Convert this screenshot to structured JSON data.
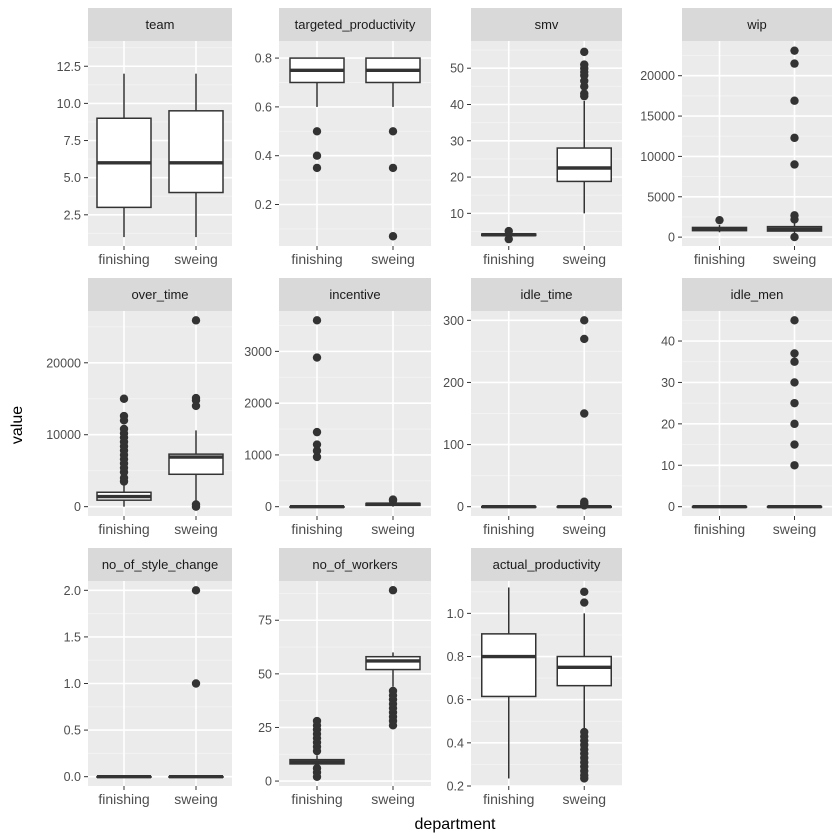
{
  "chart_data": {
    "type": "boxplot",
    "layout": "facet-wrap",
    "xlabel": "department",
    "ylabel": "value",
    "categories": [
      "finishing",
      "sweing"
    ],
    "colors": {
      "panel_bg": "#ebebeb",
      "strip_bg": "#d9d9d9",
      "grid_major": "#ffffff",
      "grid_minor": "#f3f3f3",
      "box_fill": "#ffffff",
      "box_line": "#333333",
      "axis_text": "#4d4d4d",
      "title_text": "#000000"
    },
    "facets": [
      {
        "name": "team",
        "ylim": [
          0.4,
          14.2
        ],
        "ticks": [
          2.5,
          5.0,
          7.5,
          10.0,
          12.5
        ],
        "tick_labels": [
          "2.5",
          "5.0",
          "7.5",
          "10.0",
          "12.5"
        ],
        "boxes": [
          {
            "category": "finishing",
            "min": 1,
            "q1": 3,
            "median": 6,
            "q3": 9,
            "max": 12,
            "outliers": []
          },
          {
            "category": "sweing",
            "min": 1,
            "q1": 4,
            "median": 6,
            "q3": 9.5,
            "max": 12,
            "outliers": []
          }
        ]
      },
      {
        "name": "targeted_productivity",
        "ylim": [
          0.03,
          0.87
        ],
        "ticks": [
          0.2,
          0.4,
          0.6,
          0.8
        ],
        "tick_labels": [
          "0.2",
          "0.4",
          "0.6",
          "0.8"
        ],
        "boxes": [
          {
            "category": "finishing",
            "min": 0.6,
            "q1": 0.7,
            "median": 0.75,
            "q3": 0.8,
            "max": 0.8,
            "outliers": [
              0.5,
              0.4,
              0.35
            ]
          },
          {
            "category": "sweing",
            "min": 0.6,
            "q1": 0.7,
            "median": 0.75,
            "q3": 0.8,
            "max": 0.8,
            "outliers": [
              0.5,
              0.35,
              0.07
            ]
          }
        ]
      },
      {
        "name": "smv",
        "ylim": [
          1,
          57.5
        ],
        "ticks": [
          10,
          20,
          30,
          40,
          50
        ],
        "tick_labels": [
          "10",
          "20",
          "30",
          "40",
          "50"
        ],
        "boxes": [
          {
            "category": "finishing",
            "min": 3.5,
            "q1": 3.9,
            "median": 4.1,
            "q3": 4.3,
            "max": 4.6,
            "outliers": [
              2.9,
              5.1
            ]
          },
          {
            "category": "sweing",
            "min": 10,
            "q1": 18.8,
            "median": 22.5,
            "q3": 28,
            "max": 41,
            "outliers": [
              42.3,
              43,
              45,
              46.5,
              48,
              49,
              50,
              51,
              54.5
            ]
          }
        ]
      },
      {
        "name": "wip",
        "ylim": [
          -1100,
          24300
        ],
        "ticks": [
          0,
          5000,
          10000,
          15000,
          20000
        ],
        "tick_labels": [
          "0",
          "5000",
          "10000",
          "15000",
          "20000"
        ],
        "boxes": [
          {
            "category": "finishing",
            "min": 600,
            "q1": 800,
            "median": 1000,
            "q3": 1200,
            "max": 1500,
            "outliers": [
              2100
            ]
          },
          {
            "category": "sweing",
            "min": 50,
            "q1": 750,
            "median": 1000,
            "q3": 1300,
            "max": 2000,
            "outliers": [
              7,
              2200,
              2700,
              9000,
              12300,
              16900,
              21500,
              23100
            ]
          }
        ]
      },
      {
        "name": "over_time",
        "ylim": [
          -1300,
          27200
        ],
        "ticks": [
          0,
          10000,
          20000
        ],
        "tick_labels": [
          "0",
          "10000",
          "20000"
        ],
        "boxes": [
          {
            "category": "finishing",
            "min": 0,
            "q1": 900,
            "median": 1400,
            "q3": 2000,
            "max": 3000,
            "outliers": [
              3500,
              4000,
              4800,
              5400,
              6000,
              6600,
              7200,
              7800,
              8400,
              9000,
              9600,
              10200,
              10800,
              12000,
              12600,
              15000
            ]
          },
          {
            "category": "sweing",
            "min": 0,
            "q1": 4500,
            "median": 6900,
            "q3": 7300,
            "max": 10600,
            "outliers": [
              0,
              300,
              14000,
              14800,
              15100,
              25900
            ]
          }
        ]
      },
      {
        "name": "incentive",
        "ylim": [
          -180,
          3780
        ],
        "ticks": [
          0,
          1000,
          2000,
          3000
        ],
        "tick_labels": [
          "0",
          "1000",
          "2000",
          "3000"
        ],
        "boxes": [
          {
            "category": "finishing",
            "min": 0,
            "q1": 0,
            "median": 0,
            "q3": 0,
            "max": 0,
            "outliers": [
              960,
              1080,
              1200,
              1440,
              2880,
              3600
            ]
          },
          {
            "category": "sweing",
            "min": 0,
            "q1": 25,
            "median": 50,
            "q3": 63,
            "max": 110,
            "outliers": [
              119,
              138
            ]
          }
        ]
      },
      {
        "name": "idle_time",
        "ylim": [
          -15,
          315
        ],
        "ticks": [
          0,
          100,
          200,
          300
        ],
        "tick_labels": [
          "0",
          "100",
          "200",
          "300"
        ],
        "boxes": [
          {
            "category": "finishing",
            "min": 0,
            "q1": 0,
            "median": 0,
            "q3": 0,
            "max": 0,
            "outliers": []
          },
          {
            "category": "sweing",
            "min": 0,
            "q1": 0,
            "median": 0,
            "q3": 0,
            "max": 0,
            "outliers": [
              2,
              5,
              8,
              150,
              270,
              300
            ]
          }
        ]
      },
      {
        "name": "idle_men",
        "ylim": [
          -2.25,
          47.25
        ],
        "ticks": [
          0,
          10,
          20,
          30,
          40
        ],
        "tick_labels": [
          "0",
          "10",
          "20",
          "30",
          "40"
        ],
        "boxes": [
          {
            "category": "finishing",
            "min": 0,
            "q1": 0,
            "median": 0,
            "q3": 0,
            "max": 0,
            "outliers": []
          },
          {
            "category": "sweing",
            "min": 0,
            "q1": 0,
            "median": 0,
            "q3": 0,
            "max": 0,
            "outliers": [
              10,
              15,
              20,
              25,
              30,
              35,
              37,
              45
            ]
          }
        ]
      },
      {
        "name": "no_of_style_change",
        "ylim": [
          -0.1,
          2.1
        ],
        "ticks": [
          0.0,
          0.5,
          1.0,
          1.5,
          2.0
        ],
        "tick_labels": [
          "0.0",
          "0.5",
          "1.0",
          "1.5",
          "2.0"
        ],
        "boxes": [
          {
            "category": "finishing",
            "min": 0,
            "q1": 0,
            "median": 0,
            "q3": 0,
            "max": 0,
            "outliers": []
          },
          {
            "category": "sweing",
            "min": 0,
            "q1": 0,
            "median": 0,
            "q3": 0,
            "max": 0,
            "outliers": [
              1,
              2
            ]
          }
        ]
      },
      {
        "name": "no_of_workers",
        "ylim": [
          -2.3,
          93.3
        ],
        "ticks": [
          0,
          25,
          50,
          75
        ],
        "tick_labels": [
          "0",
          "25",
          "50",
          "75"
        ],
        "boxes": [
          {
            "category": "finishing",
            "min": 8,
            "q1": 8,
            "median": 9,
            "q3": 10,
            "max": 12,
            "outliers": [
              2,
              4,
              6,
              14,
              16,
              18,
              20,
              22,
              24,
              26,
              28
            ]
          },
          {
            "category": "sweing",
            "min": 44,
            "q1": 52,
            "median": 56,
            "q3": 58,
            "max": 60,
            "outliers": [
              26,
              28,
              30,
              32,
              34,
              36,
              38,
              40,
              42,
              89
            ]
          }
        ]
      },
      {
        "name": "actual_productivity",
        "ylim": [
          0.2,
          1.15
        ],
        "ticks": [
          0.2,
          0.4,
          0.6,
          0.8,
          1.0
        ],
        "tick_labels": [
          "0.2",
          "0.4",
          "0.6",
          "0.8",
          "1.0"
        ],
        "boxes": [
          {
            "category": "finishing",
            "min": 0.235,
            "q1": 0.615,
            "median": 0.8,
            "q3": 0.905,
            "max": 1.12,
            "outliers": []
          },
          {
            "category": "sweing",
            "min": 0.46,
            "q1": 0.665,
            "median": 0.75,
            "q3": 0.8,
            "max": 1.0,
            "outliers": [
              0.235,
              0.25,
              0.27,
              0.29,
              0.31,
              0.33,
              0.35,
              0.37,
              0.39,
              0.41,
              0.43,
              0.45,
              1.05,
              1.1
            ]
          }
        ]
      }
    ]
  }
}
